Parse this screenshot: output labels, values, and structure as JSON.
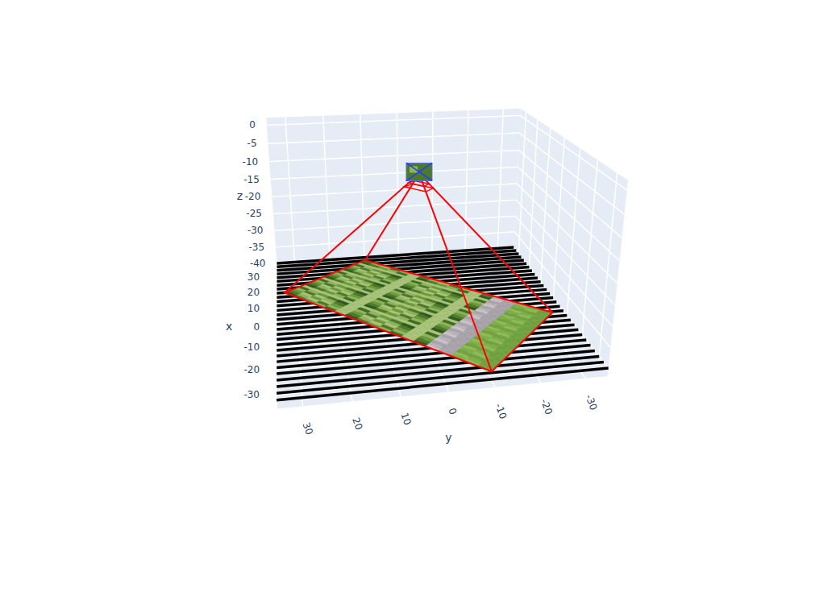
{
  "chart_data": {
    "type": "scatter3d",
    "x_label": "x",
    "y_label": "y",
    "z_label": "z",
    "xlim": [
      -35,
      35
    ],
    "ylim": [
      -35,
      35
    ],
    "zlim": [
      -42,
      2
    ],
    "xticks": [
      -30,
      -20,
      -10,
      0,
      10,
      20,
      30
    ],
    "yticks": [
      -30,
      -20,
      -10,
      0,
      10,
      20,
      30
    ],
    "zticks": [
      -40,
      -35,
      -30,
      -25,
      -20,
      -15,
      -10,
      -5,
      0
    ],
    "grid": true,
    "camera": {
      "x": 0,
      "y": 0,
      "z": -5
    },
    "footprint": {
      "x": [
        15,
        33,
        -8,
        -32
      ],
      "y": [
        33,
        10,
        -32,
        -10
      ],
      "z": -40,
      "color": "#ff0000"
    },
    "ground": {
      "z": -40,
      "color": "#000000",
      "x": [
        -35,
        -32.5,
        -30,
        -27.5,
        -25,
        -22.5,
        -20,
        -17.5,
        -15,
        -12.5,
        -10,
        -7.5,
        -5,
        -2.5,
        0,
        2.5,
        5,
        7.5,
        10,
        12.5,
        15,
        17.5,
        20,
        22.5,
        25,
        27.5,
        30,
        32.5,
        35
      ]
    }
  }
}
